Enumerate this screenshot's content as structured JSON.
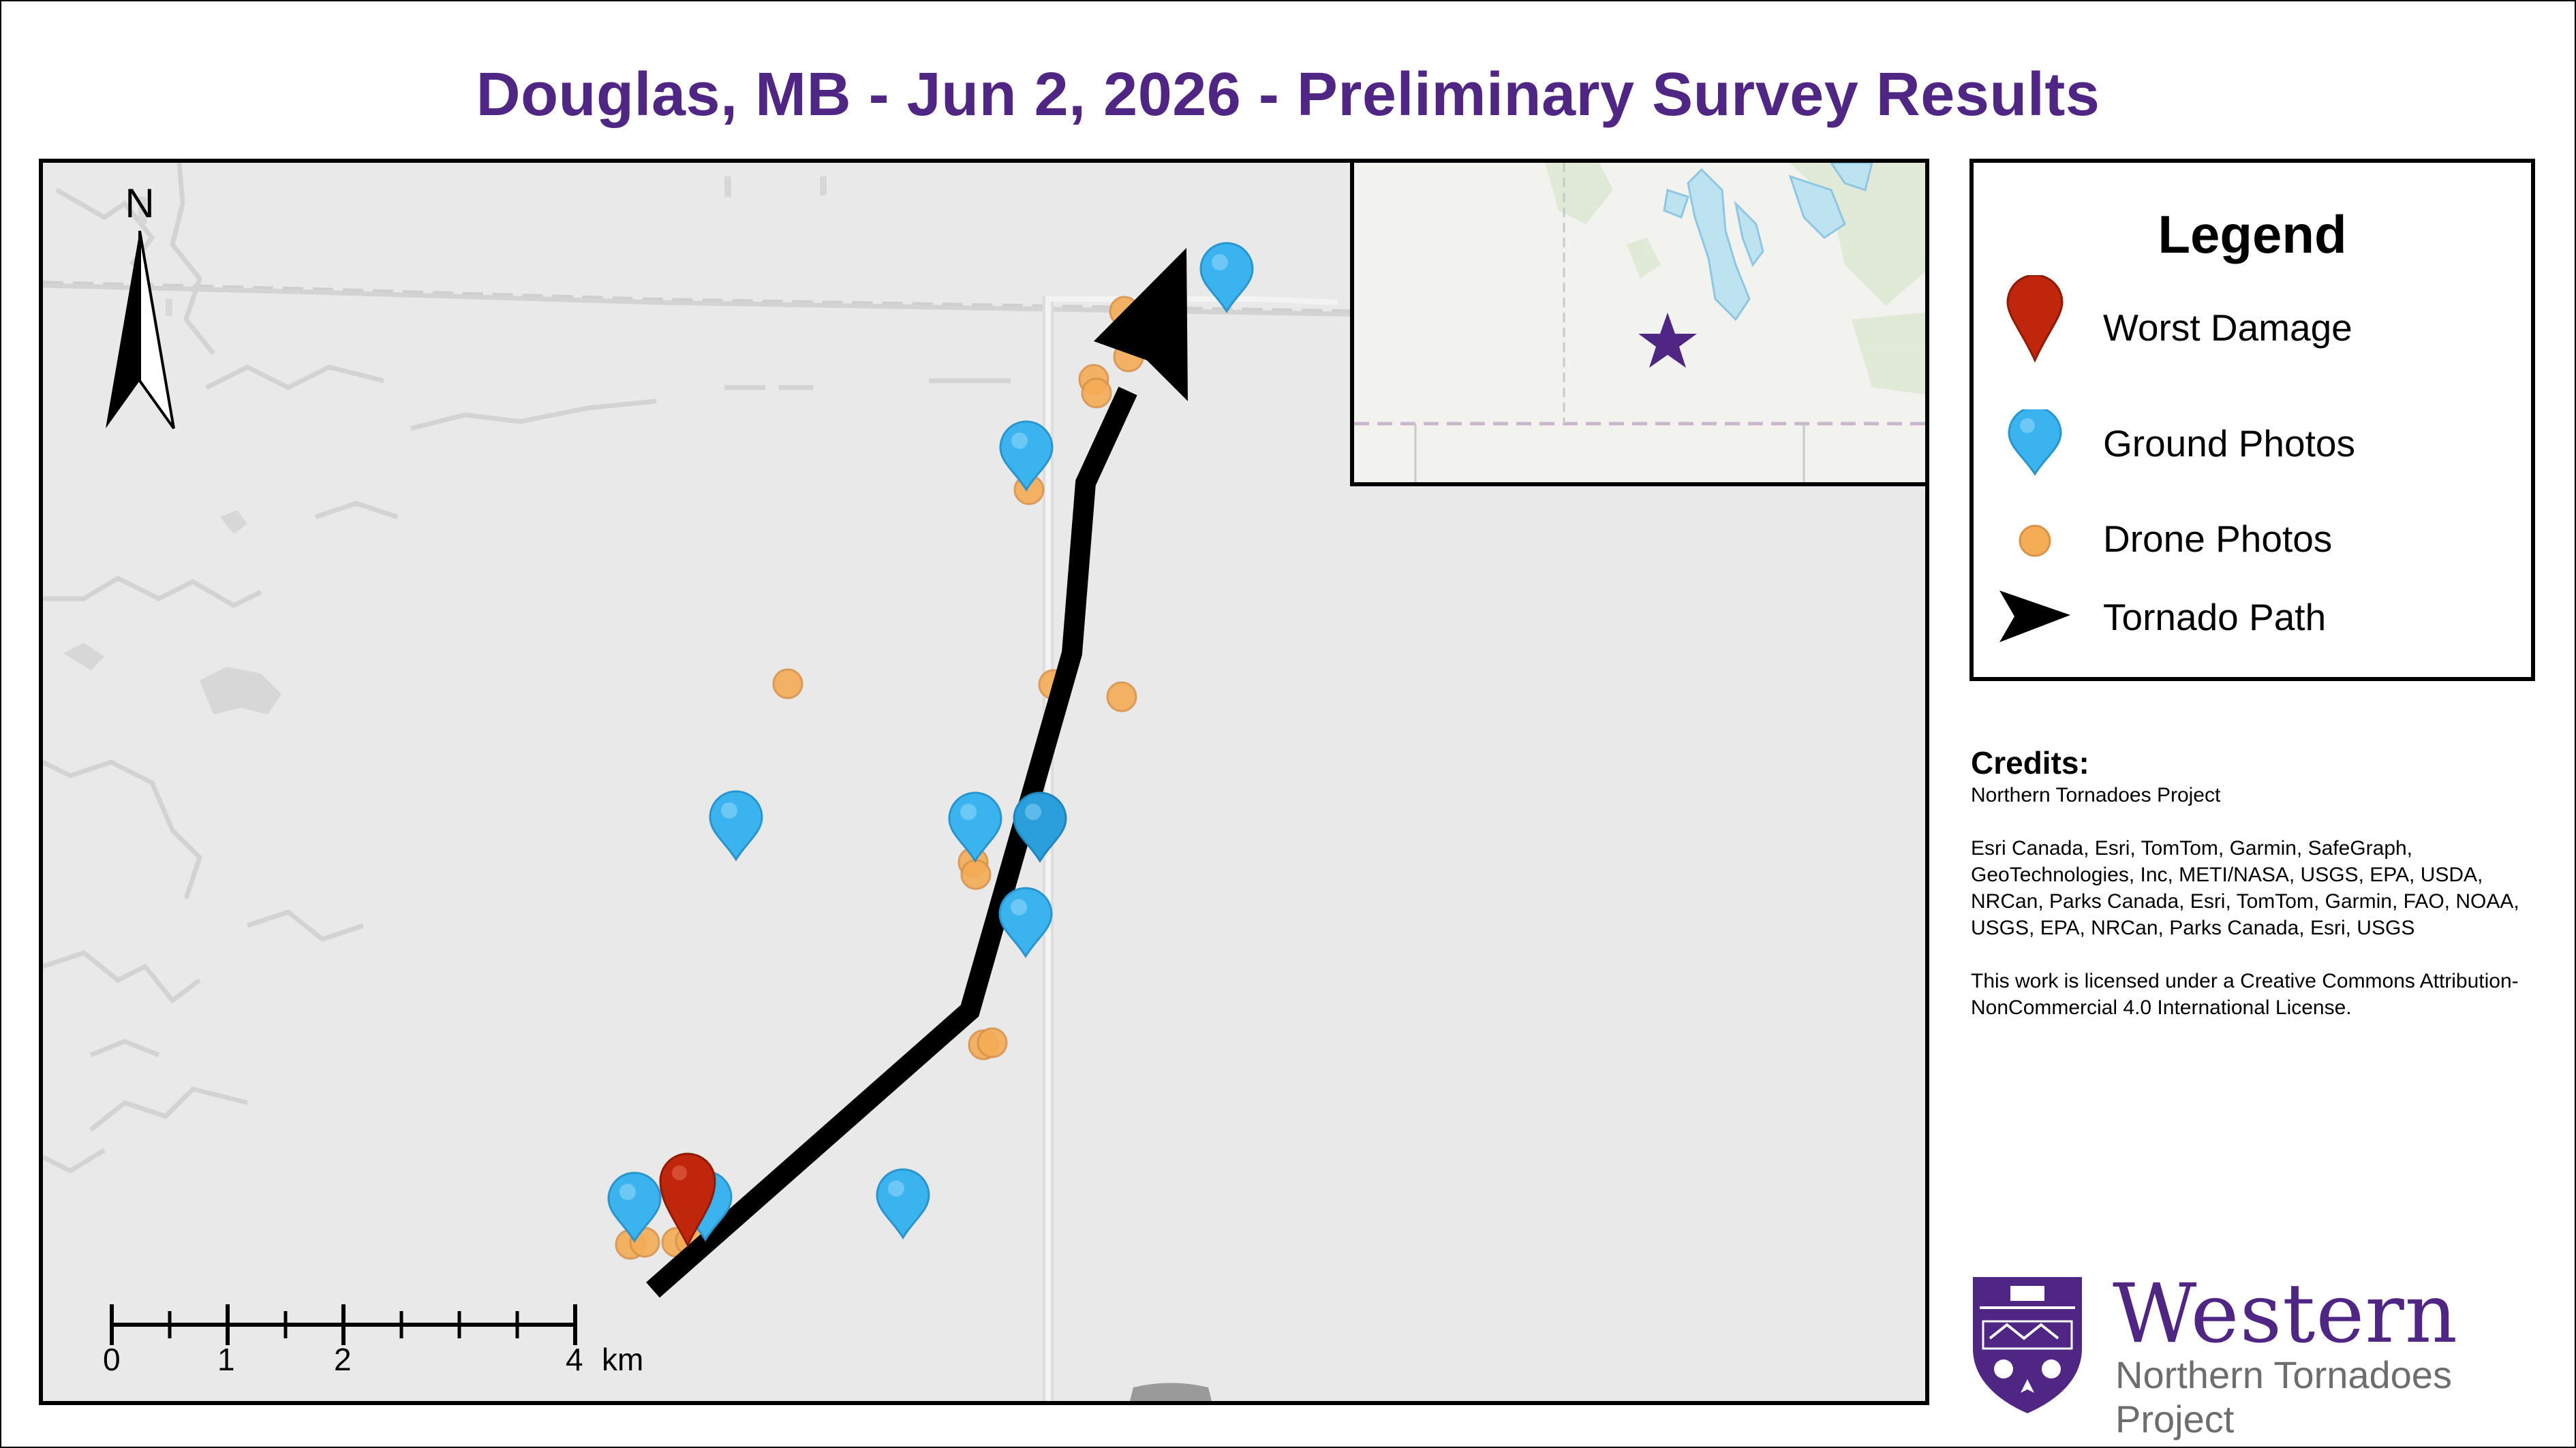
{
  "title": "Douglas, MB - Jun 2, 2026 - Preliminary Survey Results",
  "map": {
    "north_arrow_label": "N",
    "scale_bar": {
      "labels": [
        "0",
        "1",
        "2",
        "4"
      ],
      "unit": "km"
    },
    "inset_marker": "star-icon",
    "colors": {
      "worst_damage": "#c0260b",
      "ground_photos": "#3bb3ee",
      "drone_photos": "#f5ad55",
      "tornado_path": "#000000",
      "star": "#4f2683"
    }
  },
  "legend": {
    "title": "Legend",
    "items": [
      {
        "label": "Worst Damage",
        "icon": "red-pin-icon"
      },
      {
        "label": "Ground Photos",
        "icon": "blue-pin-icon"
      },
      {
        "label": "Drone Photos",
        "icon": "orange-dot-icon"
      },
      {
        "label": "Tornado Path",
        "icon": "black-arrow-icon"
      }
    ]
  },
  "credits": {
    "heading": "Credits:",
    "line1": "Northern Tornadoes Project",
    "sources": "Esri Canada, Esri, TomTom, Garmin, SafeGraph, GeoTechnologies, Inc, METI/NASA, USGS, EPA, USDA, NRCan, Parks Canada, Esri, TomTom, Garmin, FAO, NOAA, USGS, EPA, NRCan, Parks Canada, Esri, USGS",
    "license": "This work is licensed under a Creative Commons Attribution-NonCommercial 4.0 International License."
  },
  "logo": {
    "wordmark": "Western",
    "subtitle": "Northern Tornadoes Project"
  }
}
